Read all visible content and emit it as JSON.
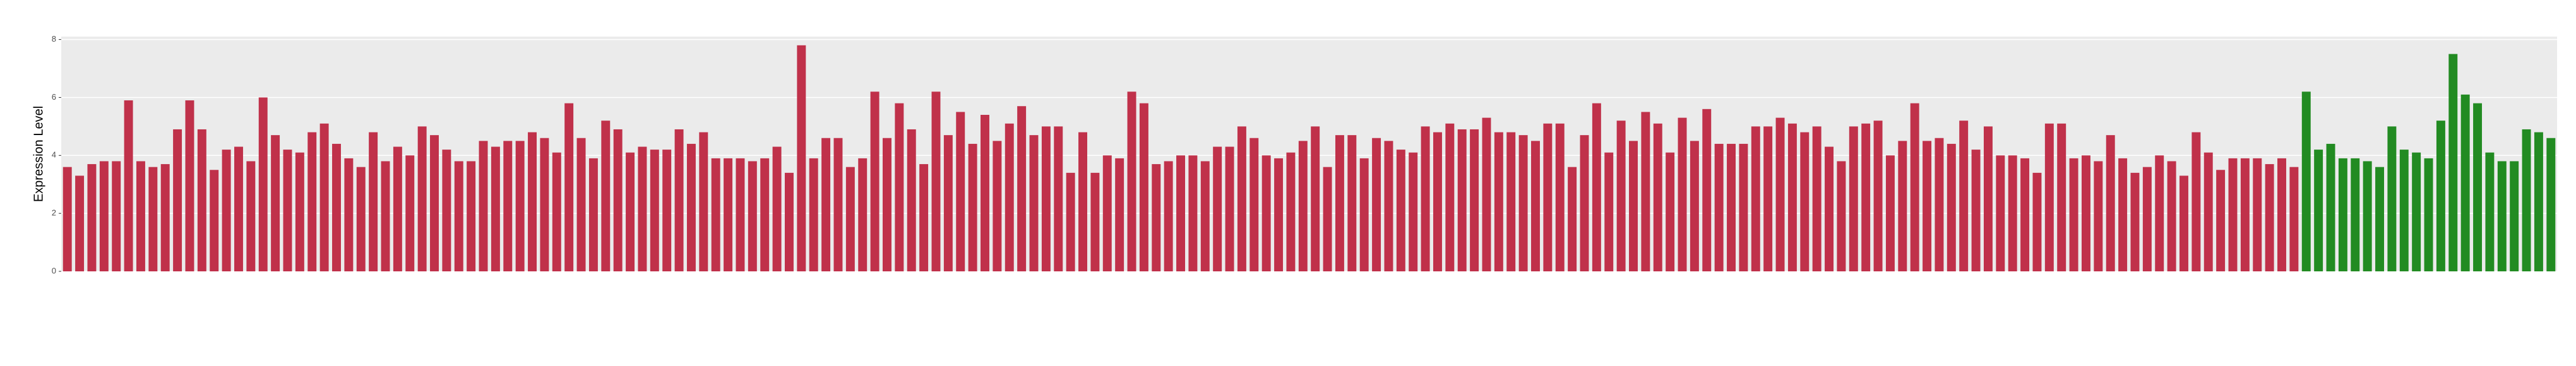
{
  "chart_data": {
    "type": "bar",
    "y_label": "Expression Level",
    "ylim": [
      0,
      8.1
    ],
    "yticks": [
      0,
      2,
      4,
      6,
      8
    ],
    "grid": true,
    "categories": [
      null,
      null,
      null,
      null,
      null,
      null,
      null,
      null,
      null,
      null,
      null,
      null,
      null,
      null,
      null,
      null,
      null,
      null,
      null,
      null,
      null,
      null,
      null,
      null,
      null,
      null,
      null,
      null,
      null,
      null,
      null,
      null,
      null,
      null,
      null,
      null,
      null,
      null,
      null,
      null,
      null,
      null,
      null,
      null,
      null,
      null,
      null,
      null,
      null,
      null,
      null,
      null,
      null,
      null,
      null,
      null,
      null,
      null,
      null,
      null,
      null,
      null,
      null,
      null,
      null,
      null,
      null,
      null,
      null,
      null,
      null,
      null,
      null,
      null,
      null,
      null,
      null,
      null,
      null,
      null,
      null,
      null,
      null,
      null,
      null,
      null,
      null,
      null,
      null,
      null,
      null,
      null,
      null,
      null,
      null,
      null,
      null,
      null,
      null,
      null,
      null,
      null,
      null,
      null,
      null,
      null,
      null,
      null,
      null,
      null,
      null,
      null,
      null,
      null,
      null,
      null,
      null,
      null,
      null,
      null,
      null,
      null,
      null,
      null,
      null,
      null,
      null,
      null,
      null,
      null,
      null,
      null,
      null,
      null,
      null,
      null,
      null,
      null,
      null,
      null,
      null,
      null,
      null,
      null,
      null,
      null,
      null,
      null,
      null,
      null,
      null,
      null,
      null,
      null,
      null,
      null,
      null,
      null,
      null,
      null,
      null,
      null,
      null,
      null,
      null,
      null,
      null,
      null,
      null,
      null,
      null,
      null,
      null,
      null,
      null,
      null,
      null,
      null,
      null,
      null,
      null,
      null,
      null,
      null,
      null,
      null,
      null,
      null,
      null,
      null,
      null,
      null,
      null,
      null,
      null,
      null,
      null,
      null,
      null,
      null,
      null,
      null,
      null,
      null
    ],
    "series": [
      {
        "color": "#c0314a",
        "values": [
          3.6,
          3.3,
          3.7,
          3.8,
          3.8,
          5.9,
          3.8,
          3.6,
          3.7,
          4.9,
          5.9,
          4.9,
          3.5,
          4.2,
          4.3,
          3.8,
          6.0,
          4.7,
          4.2,
          4.1,
          4.8,
          5.1,
          4.4,
          3.9,
          3.6,
          4.8,
          3.8,
          4.3,
          4.0,
          5.0,
          4.7,
          4.2,
          3.8,
          3.8,
          4.5,
          4.3,
          4.5,
          4.5,
          4.8,
          4.6,
          4.1,
          5.8,
          4.6,
          3.9,
          5.2,
          4.9,
          4.1,
          4.3,
          4.2,
          4.2,
          4.9,
          4.4,
          4.8,
          3.9,
          3.9,
          3.9,
          3.8,
          3.9,
          4.3,
          3.4,
          7.8,
          3.9,
          4.6,
          4.6,
          3.6,
          3.9,
          6.2,
          4.6,
          5.8,
          4.9,
          3.7,
          6.2,
          4.7,
          5.5,
          4.4,
          5.4,
          4.5,
          5.1,
          5.7,
          4.7,
          5.0,
          5.0,
          3.4,
          4.8,
          3.4,
          4.0,
          3.9,
          6.2,
          5.8,
          3.7,
          3.8,
          4.0,
          4.0,
          3.8,
          4.3,
          4.3,
          5.0,
          4.6,
          4.0,
          3.9,
          4.1,
          4.5,
          5.0,
          3.6,
          4.7,
          4.7,
          3.9,
          4.6,
          4.5,
          4.2,
          4.1,
          5.0,
          4.8,
          5.1,
          4.9,
          4.9,
          5.3,
          4.8,
          4.8,
          4.7,
          4.5,
          5.1,
          5.1,
          3.6,
          4.7,
          5.8,
          4.1,
          5.2,
          4.5,
          5.5,
          5.1,
          4.1,
          5.3,
          4.5,
          5.6,
          4.4,
          4.4,
          4.4,
          5.0,
          5.0,
          5.3,
          5.1,
          4.8,
          5.0,
          4.3,
          3.8,
          5.0,
          5.1,
          5.2,
          4.0,
          4.5,
          5.8,
          4.5,
          4.6,
          4.4,
          5.2,
          4.2,
          5.0,
          4.0,
          4.0,
          3.9,
          3.4,
          5.1,
          5.1,
          3.9,
          4.0,
          3.8,
          4.7,
          3.9,
          3.4,
          3.6,
          4.0,
          3.8,
          3.3,
          4.8,
          4.1,
          3.5,
          3.9,
          3.9,
          3.9,
          3.7,
          3.9,
          3.6,
          null,
          null,
          null,
          null,
          null,
          null,
          null,
          null,
          null,
          null,
          null,
          null,
          null,
          null,
          null,
          null,
          null,
          null,
          null,
          null,
          null
        ]
      },
      {
        "color": "#228b22",
        "values": [
          null,
          null,
          null,
          null,
          null,
          null,
          null,
          null,
          null,
          null,
          null,
          null,
          null,
          null,
          null,
          null,
          null,
          null,
          null,
          null,
          null,
          null,
          null,
          null,
          null,
          null,
          null,
          null,
          null,
          null,
          null,
          null,
          null,
          null,
          null,
          null,
          null,
          null,
          null,
          null,
          null,
          null,
          null,
          null,
          null,
          null,
          null,
          null,
          null,
          null,
          null,
          null,
          null,
          null,
          null,
          null,
          null,
          null,
          null,
          null,
          null,
          null,
          null,
          null,
          null,
          null,
          null,
          null,
          null,
          null,
          null,
          null,
          null,
          null,
          null,
          null,
          null,
          null,
          null,
          null,
          null,
          null,
          null,
          null,
          null,
          null,
          null,
          null,
          null,
          null,
          null,
          null,
          null,
          null,
          null,
          null,
          null,
          null,
          null,
          null,
          null,
          null,
          null,
          null,
          null,
          null,
          null,
          null,
          null,
          null,
          null,
          null,
          null,
          null,
          null,
          null,
          null,
          null,
          null,
          null,
          null,
          null,
          null,
          null,
          null,
          null,
          null,
          null,
          null,
          null,
          null,
          null,
          null,
          null,
          null,
          null,
          null,
          null,
          null,
          null,
          null,
          null,
          null,
          null,
          null,
          null,
          null,
          null,
          null,
          null,
          null,
          null,
          null,
          null,
          null,
          null,
          null,
          null,
          null,
          null,
          null,
          null,
          null,
          null,
          null,
          null,
          null,
          null,
          null,
          null,
          null,
          null,
          null,
          null,
          null,
          null,
          null,
          null,
          null,
          null,
          null,
          null,
          null,
          6.2,
          4.2,
          4.4,
          3.9,
          3.9,
          3.8,
          3.6,
          5.0,
          4.2,
          4.1,
          3.9,
          5.2,
          7.5,
          6.1,
          5.8,
          4.1,
          3.8,
          3.8,
          4.9,
          4.8,
          4.6
        ]
      }
    ]
  }
}
